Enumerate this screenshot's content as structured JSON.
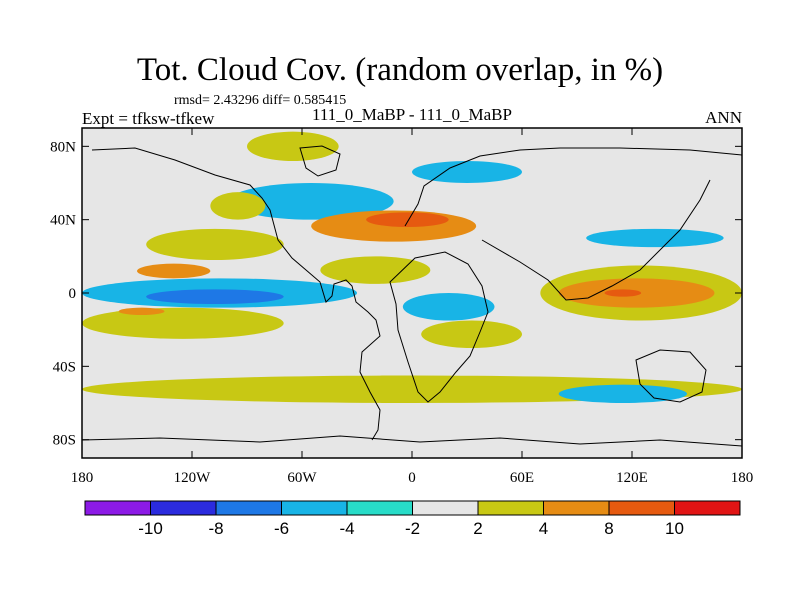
{
  "title": "Tot. Cloud Cov. (random overlap, in %)",
  "stats": "rmsd= 2.43296 diff= 0.585415",
  "experiment": "Expt = tfksw-tfkew",
  "case": "111_0_MaBP - 111_0_MaBP",
  "season": "ANN",
  "chart_data": {
    "type": "heatmap",
    "variable": "Tot. Cloud Cov. (random overlap, in %)",
    "projection": "cylindrical equidistant",
    "lon_range": [
      -180,
      180
    ],
    "lat_range": [
      -90,
      90
    ],
    "lon_ticks": [
      "180",
      "120W",
      "60W",
      "0",
      "60E",
      "120E",
      "180"
    ],
    "lon_tick_values": [
      -180,
      -120,
      -60,
      0,
      60,
      120,
      180
    ],
    "lat_ticks": [
      "80N",
      "40N",
      "0",
      "40S",
      "80S"
    ],
    "lat_tick_values": [
      80,
      40,
      0,
      -40,
      -80
    ],
    "levels": [
      "-10",
      "-8",
      "-6",
      "-4",
      "-2",
      "2",
      "4",
      "8",
      "10"
    ],
    "level_values": [
      -10,
      -8,
      -6,
      -4,
      -2,
      2,
      4,
      8,
      10
    ],
    "colors": [
      "#8c1ae6",
      "#2b2bde",
      "#1e78e6",
      "#18b4e6",
      "#28dcc8",
      "#e6e6e6",
      "#c8c814",
      "#e68c14",
      "#e65a10",
      "#e11414"
    ],
    "regions": [
      {
        "level": 3,
        "lon": [
          -100,
          -10
        ],
        "lat": [
          40,
          60
        ]
      },
      {
        "level": 6,
        "lon": [
          -110,
          -80
        ],
        "lat": [
          40,
          55
        ]
      },
      {
        "level": 7,
        "lon": [
          -55,
          35
        ],
        "lat": [
          28,
          45
        ]
      },
      {
        "level": 8,
        "lon": [
          -25,
          20
        ],
        "lat": [
          36,
          44
        ]
      },
      {
        "level": 6,
        "lon": [
          -145,
          -70
        ],
        "lat": [
          18,
          35
        ]
      },
      {
        "level": 7,
        "lon": [
          -150,
          -110
        ],
        "lat": [
          8,
          16
        ]
      },
      {
        "level": 3,
        "lon": [
          -180,
          -30
        ],
        "lat": [
          -8,
          8
        ]
      },
      {
        "level": 2,
        "lon": [
          -145,
          -70
        ],
        "lat": [
          -6,
          2
        ]
      },
      {
        "level": 3,
        "lon": [
          -5,
          45
        ],
        "lat": [
          -15,
          0
        ]
      },
      {
        "level": 6,
        "lon": [
          -180,
          -70
        ],
        "lat": [
          -25,
          -8
        ]
      },
      {
        "level": 7,
        "lon": [
          -160,
          -135
        ],
        "lat": [
          -12,
          -8
        ]
      },
      {
        "level": 6,
        "lon": [
          70,
          180
        ],
        "lat": [
          -15,
          15
        ]
      },
      {
        "level": 7,
        "lon": [
          80,
          165
        ],
        "lat": [
          -8,
          8
        ]
      },
      {
        "level": 8,
        "lon": [
          105,
          125
        ],
        "lat": [
          -2,
          2
        ]
      },
      {
        "level": 6,
        "lon": [
          -180,
          180
        ],
        "lat": [
          -60,
          -45
        ]
      },
      {
        "level": 6,
        "lon": [
          -50,
          10
        ],
        "lat": [
          5,
          20
        ]
      },
      {
        "level": 6,
        "lon": [
          -90,
          -40
        ],
        "lat": [
          72,
          88
        ]
      },
      {
        "level": 3,
        "lon": [
          0,
          60
        ],
        "lat": [
          60,
          72
        ]
      },
      {
        "level": 3,
        "lon": [
          95,
          170
        ],
        "lat": [
          25,
          35
        ]
      },
      {
        "level": 6,
        "lon": [
          5,
          60
        ],
        "lat": [
          -30,
          -15
        ]
      },
      {
        "level": 3,
        "lon": [
          80,
          150
        ],
        "lat": [
          -60,
          -50
        ]
      }
    ]
  }
}
